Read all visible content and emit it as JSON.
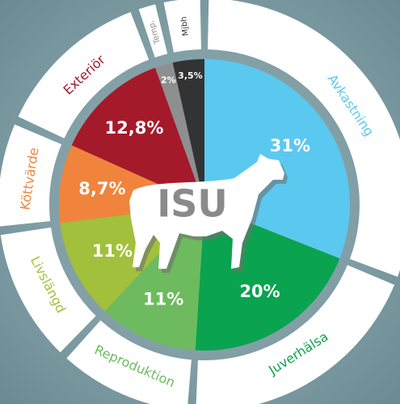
{
  "chart_data": {
    "type": "pie",
    "title": "ISU",
    "categories": [
      "Avkastning",
      "Juverhälsa",
      "Reproduktion",
      "Livslängd",
      "Köttvärde",
      "Exteriör",
      "Temp.",
      "Mjbh"
    ],
    "values": [
      31,
      20,
      11,
      11,
      8.7,
      12.8,
      2,
      3.5
    ],
    "value_labels": [
      "31%",
      "20%",
      "11%",
      "11%",
      "8,7%",
      "12,8%",
      "2%",
      "3,5%"
    ],
    "colors": [
      "#5bc8f0",
      "#0aa34f",
      "#6dbb5e",
      "#a2c03b",
      "#f0843c",
      "#a41a2a",
      "#8d8f91",
      "#333333"
    ]
  }
}
